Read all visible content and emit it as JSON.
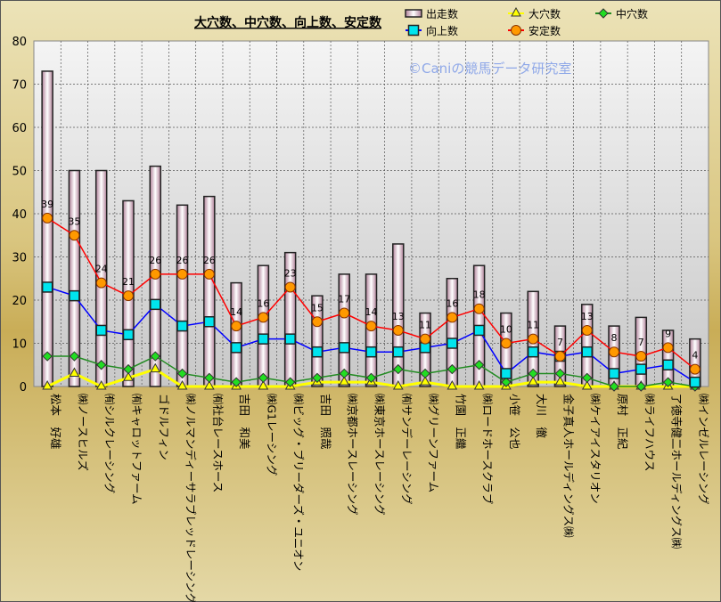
{
  "chart_data": {
    "type": "bar+line",
    "title": "大穴数、中穴数、向上数、安定数",
    "watermark": "©Caniの競馬データ研究室",
    "ylim": [
      0,
      80
    ],
    "yticks": [
      0,
      10,
      20,
      30,
      40,
      50,
      60,
      70,
      80
    ],
    "grid": true,
    "legend_position": "top-right",
    "categories": [
      "松本　好雄",
      "㈱ノースヒルズ",
      "㈲シルクレーシング",
      "㈲キャロットファーム",
      "ゴドルフィン",
      "㈱ノルマンディーサラブレッドレーシング",
      "㈲社台レースホース",
      "吉田　和美",
      "㈱G1レーシング",
      "㈱ビッグ・ブリーダーズ・ユニオン",
      "吉田　照哉",
      "㈱京都ホースレーシング",
      "㈱東京ホースレーシング",
      "㈲サンデーレーシング",
      "㈱グリーンファーム",
      "竹園　正繼",
      "㈱ロードホースクラブ",
      "小笹　公也",
      "大川　徹",
      "金子真人ホールディングス㈱",
      "㈱ケイアイスタリオン",
      "原村　正紀",
      "㈱ライフハウス",
      "了徳寺健二ホールディングス㈱",
      "㈱インゼルレーシング"
    ],
    "series": [
      {
        "name": "出走数",
        "type": "bar",
        "color": "#f4e4ec",
        "values": [
          73,
          50,
          50,
          43,
          51,
          42,
          44,
          24,
          28,
          31,
          21,
          26,
          26,
          33,
          17,
          25,
          28,
          17,
          22,
          14,
          19,
          14,
          16,
          13,
          11
        ]
      },
      {
        "name": "大穴数",
        "type": "line",
        "color": "#ffff00",
        "marker": "triangle",
        "values": [
          0,
          3,
          0,
          2,
          4,
          0,
          0,
          0,
          0,
          0,
          1,
          1,
          1,
          0,
          1,
          0,
          0,
          0,
          1,
          1,
          0,
          0,
          0,
          0,
          0
        ]
      },
      {
        "name": "中穴数",
        "type": "line",
        "color": "#228b22",
        "marker": "diamond",
        "values": [
          7,
          7,
          5,
          4,
          7,
          3,
          2,
          1,
          2,
          1,
          2,
          3,
          2,
          4,
          3,
          4,
          5,
          1,
          3,
          3,
          2,
          0,
          0,
          1,
          0
        ]
      },
      {
        "name": "向上数",
        "type": "line",
        "color": "#0000ff",
        "marker": "square",
        "values": [
          23,
          21,
          13,
          12,
          19,
          14,
          15,
          9,
          11,
          11,
          8,
          9,
          8,
          8,
          9,
          10,
          13,
          3,
          8,
          7,
          8,
          3,
          4,
          5,
          1
        ]
      },
      {
        "name": "安定数",
        "type": "line",
        "color": "#ff0000",
        "marker": "circle",
        "labels": true,
        "values": [
          39,
          35,
          24,
          21,
          26,
          26,
          26,
          14,
          16,
          23,
          15,
          17,
          14,
          13,
          11,
          16,
          18,
          10,
          11,
          7,
          13,
          8,
          7,
          9,
          4
        ]
      }
    ]
  }
}
